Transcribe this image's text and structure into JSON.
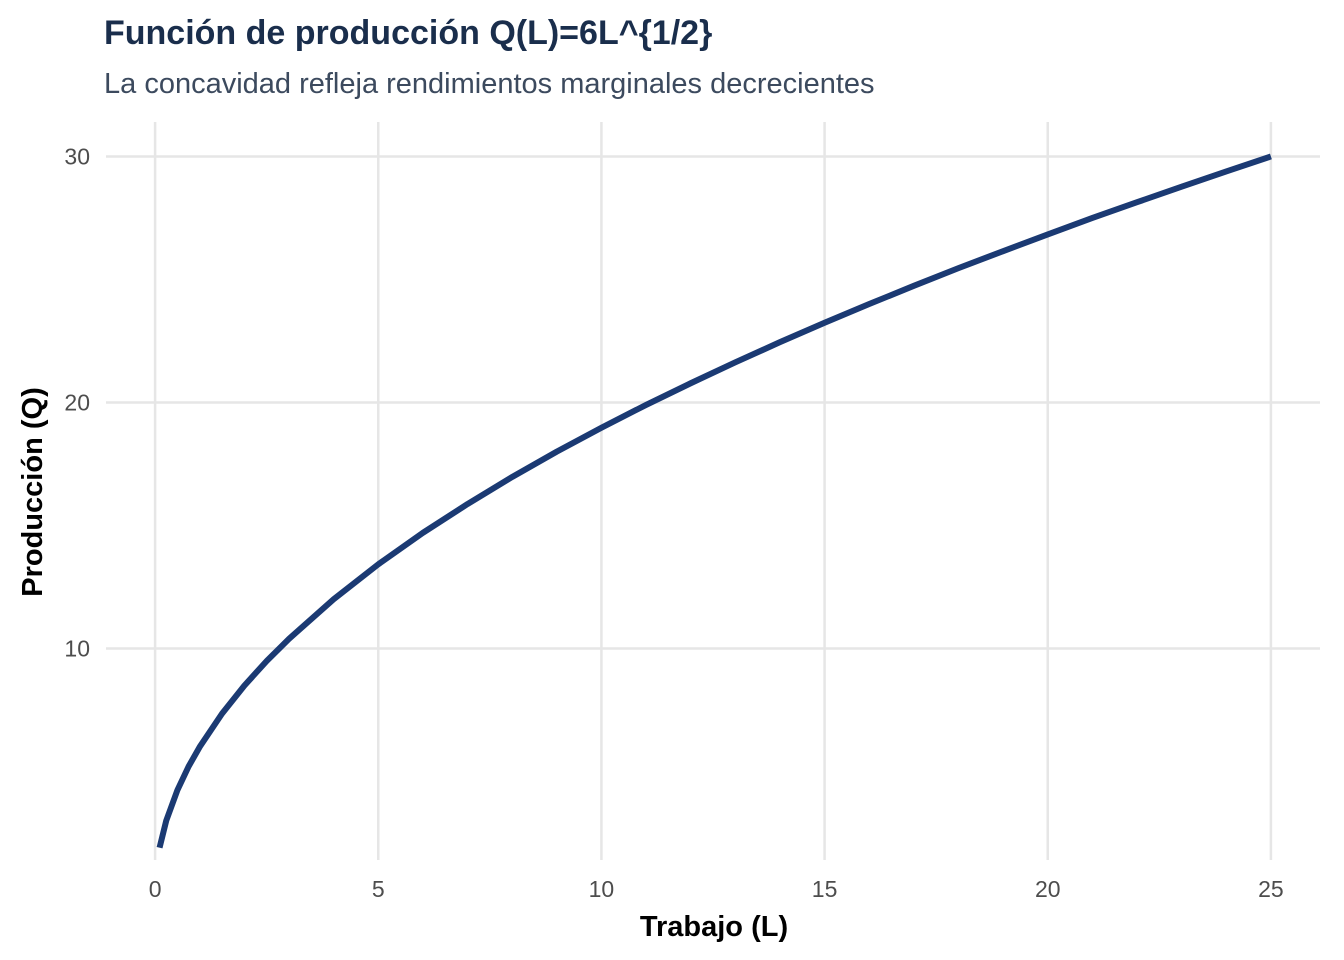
{
  "chart_data": {
    "type": "line",
    "title": "Función de producción Q(L)=6L^{1/2}",
    "subtitle": "La concavidad refleja rendimientos marginales decrecientes",
    "xlabel": "Trabajo (L)",
    "ylabel": "Producción (Q)",
    "xlim": [
      -1.1,
      26.1
    ],
    "ylim": [
      1.4,
      31.4
    ],
    "xticks": [
      0,
      5,
      10,
      15,
      20,
      25
    ],
    "yticks": [
      10,
      20,
      30
    ],
    "grid": true,
    "legend": "none",
    "line_color": "#1b3a73",
    "series": [
      {
        "x": [
          0.1,
          0.25,
          0.5,
          0.75,
          1,
          1.5,
          2,
          2.5,
          3,
          4,
          5,
          6,
          7,
          8,
          9,
          10,
          11,
          12,
          13,
          14,
          15,
          16,
          17,
          18,
          19,
          20,
          21,
          22,
          23,
          24,
          25
        ],
        "values": [
          1.9,
          3.0,
          4.24,
          5.2,
          6.0,
          7.35,
          8.49,
          9.49,
          10.39,
          12.0,
          13.42,
          14.7,
          15.87,
          16.97,
          18.0,
          18.97,
          19.9,
          20.78,
          21.63,
          22.45,
          23.24,
          24.0,
          24.74,
          25.46,
          26.15,
          26.83,
          27.5,
          28.14,
          28.77,
          29.39,
          30.0
        ]
      }
    ]
  }
}
